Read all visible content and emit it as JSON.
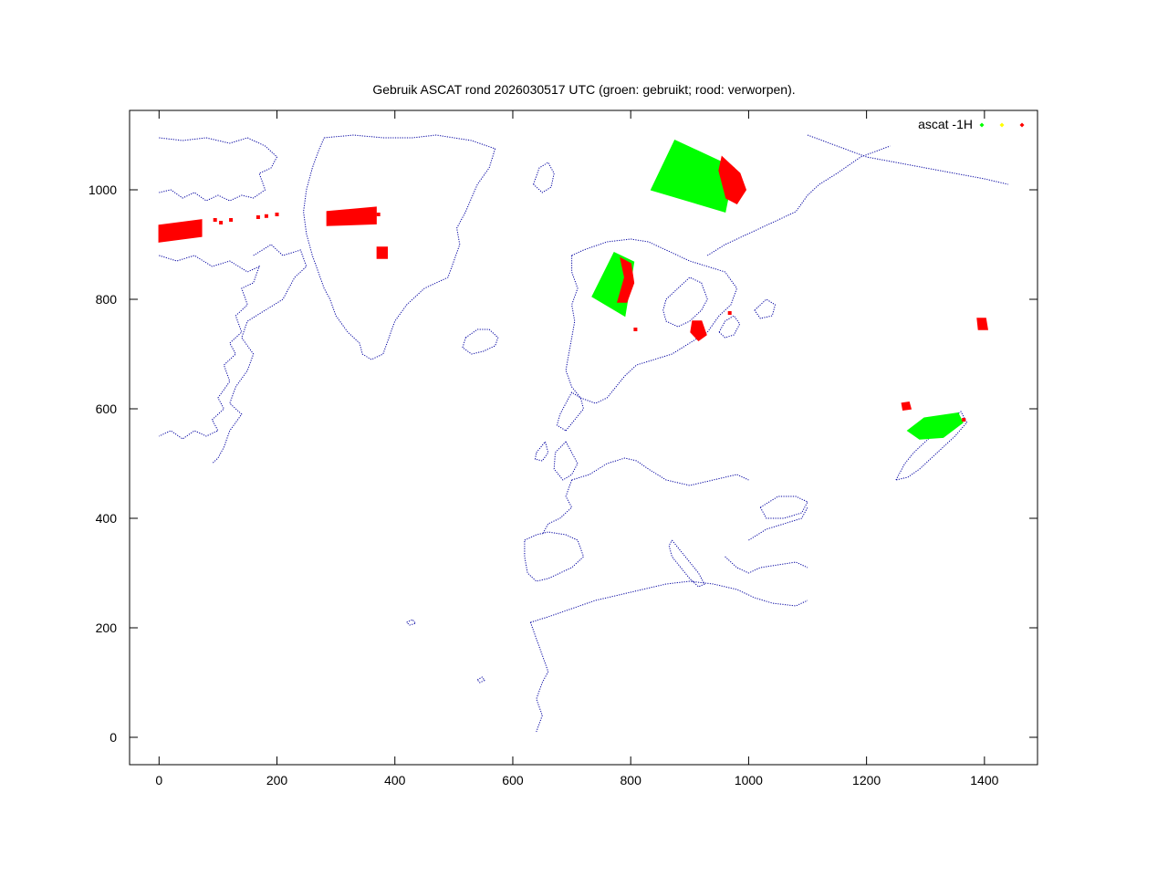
{
  "chart_data": {
    "type": "scatter",
    "title": "Gebruik ASCAT rond 2026030517 UTC (groen: gebruikt; rood: verworpen).",
    "xlabel": "",
    "ylabel": "",
    "xlim": [
      -50,
      1490
    ],
    "ylim": [
      -50,
      1145
    ],
    "x_ticks": [
      0,
      200,
      400,
      600,
      800,
      1000,
      1200,
      1400
    ],
    "y_ticks": [
      0,
      200,
      400,
      600,
      800,
      1000
    ],
    "grid": false,
    "legend": {
      "placement": "top-right",
      "label": "ascat -1H",
      "markers": [
        "green",
        "yellow",
        "red"
      ]
    },
    "colors": {
      "coastline": "#0000a0",
      "used": "#00ff00",
      "uncertain": "#ffff00",
      "rejected": "#ff0000",
      "axes": "#000000"
    },
    "series": [
      {
        "color": "used",
        "regions": [
          {
            "polygon": [
              [
                835,
                1000
              ],
              [
                875,
                1090
              ],
              [
                975,
                1040
              ],
              [
                960,
                960
              ]
            ]
          },
          {
            "polygon": [
              [
                735,
                805
              ],
              [
                772,
                885
              ],
              [
                805,
                868
              ],
              [
                790,
                770
              ]
            ]
          },
          {
            "polygon": [
              [
                1270,
                560
              ],
              [
                1298,
                583
              ],
              [
                1355,
                592
              ],
              [
                1363,
                575
              ],
              [
                1330,
                548
              ],
              [
                1290,
                545
              ]
            ]
          }
        ]
      },
      {
        "color": "rejected",
        "regions": [
          {
            "polygon": [
              [
                0,
                935
              ],
              [
                72,
                945
              ],
              [
                72,
                915
              ],
              [
                0,
                905
              ]
            ]
          },
          {
            "polygon": [
              [
                285,
                960
              ],
              [
                368,
                968
              ],
              [
                368,
                938
              ],
              [
                285,
                935
              ]
            ]
          },
          {
            "polygon": [
              [
                370,
                895
              ],
              [
                387,
                895
              ],
              [
                387,
                875
              ],
              [
                370,
                875
              ]
            ]
          },
          {
            "polygon": [
              [
                955,
                1060
              ],
              [
                985,
                1030
              ],
              [
                995,
                1000
              ],
              [
                980,
                975
              ],
              [
                962,
                985
              ],
              [
                950,
                1035
              ]
            ]
          },
          {
            "polygon": [
              [
                783,
                875
              ],
              [
                800,
                865
              ],
              [
                805,
                830
              ],
              [
                793,
                795
              ],
              [
                778,
                795
              ],
              [
                790,
                840
              ]
            ]
          },
          {
            "polygon": [
              [
                905,
                760
              ],
              [
                920,
                760
              ],
              [
                928,
                735
              ],
              [
                915,
                725
              ],
              [
                902,
                740
              ]
            ]
          },
          {
            "polygon": [
              [
                1388,
                765
              ],
              [
                1402,
                765
              ],
              [
                1405,
                745
              ],
              [
                1390,
                745
              ]
            ]
          },
          {
            "polygon": [
              [
                1260,
                610
              ],
              [
                1272,
                612
              ],
              [
                1275,
                600
              ],
              [
                1262,
                598
              ]
            ]
          }
        ],
        "scatter_points": [
          [
            95,
            945
          ],
          [
            105,
            940
          ],
          [
            122,
            945
          ],
          [
            168,
            950
          ],
          [
            182,
            952
          ],
          [
            200,
            955
          ],
          [
            372,
            955
          ],
          [
            808,
            745
          ],
          [
            968,
            775
          ],
          [
            1365,
            580
          ]
        ]
      }
    ],
    "coastline_description": "map of the North Atlantic: Canadian Arctic, Greenland, Iceland, Scandinavia, Europe, Mediterranean"
  }
}
